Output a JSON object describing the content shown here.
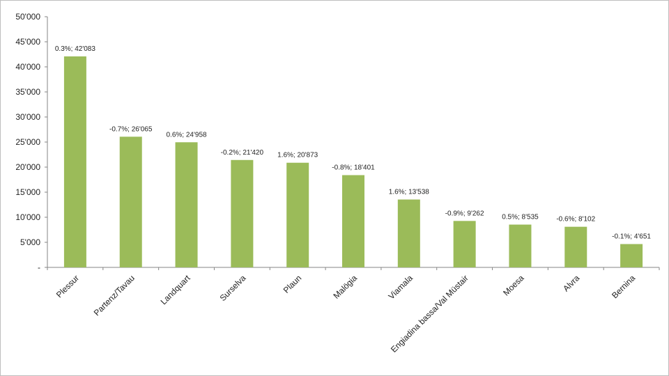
{
  "chart_data": {
    "type": "bar",
    "title": "",
    "xlabel": "",
    "ylabel": "",
    "ylim": [
      0,
      50000
    ],
    "ytick_values": [
      0,
      5000,
      10000,
      15000,
      20000,
      25000,
      30000,
      35000,
      40000,
      45000,
      50000
    ],
    "ytick_labels": [
      "-",
      "5'000",
      "10'000",
      "15'000",
      "20'000",
      "25'000",
      "30'000",
      "35'000",
      "40'000",
      "45'000",
      "50'000"
    ],
    "grid": false,
    "legend": "none",
    "bar_color": "#9bbb59",
    "categories": [
      "Plessur",
      "Partenz/Tavau",
      "Landquart",
      "Surselva",
      "Plaun",
      "Malögia",
      "Viamala",
      "Engiadina bassa/Val Müstair",
      "Moesa",
      "Alvra",
      "Bernina"
    ],
    "values": [
      42083,
      26065,
      24958,
      21420,
      20873,
      18401,
      13538,
      9262,
      8535,
      8102,
      4651
    ],
    "data_labels": [
      "0.3%; 42'083",
      "-0.7%; 26'065",
      "0.6%; 24'958",
      "-0.2%; 21'420",
      "1.6%; 20'873",
      "-0.8%; 18'401",
      "1.6%; 13'538",
      "-0.9%; 9'262",
      "0.5%; 8'535",
      "-0.6%; 8'102",
      "-0.1%; 4'651"
    ]
  }
}
